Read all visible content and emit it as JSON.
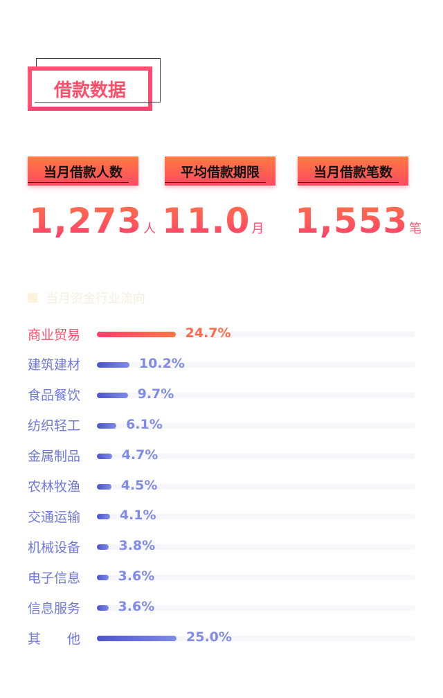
{
  "header": {
    "title": "借款数据"
  },
  "stats": [
    {
      "label": "当月借款人数",
      "value": "1,273",
      "unit": "人"
    },
    {
      "label": "平均借款期限",
      "value": "11.0",
      "unit": "月"
    },
    {
      "label": "当月借款笔数",
      "value": "1,553",
      "unit": "笔"
    }
  ],
  "section": {
    "title": "当月资金行业流向"
  },
  "industries": [
    {
      "name": "商业贸易",
      "percent": 24.7,
      "label": "24.7%"
    },
    {
      "name": "建筑建材",
      "percent": 10.2,
      "label": "10.2%"
    },
    {
      "name": "食品餐饮",
      "percent": 9.7,
      "label": "9.7%"
    },
    {
      "name": "纺织轻工",
      "percent": 6.1,
      "label": "6.1%"
    },
    {
      "name": "金属制品",
      "percent": 4.7,
      "label": "4.7%"
    },
    {
      "name": "农林牧渔",
      "percent": 4.5,
      "label": "4.5%"
    },
    {
      "name": "交通运输",
      "percent": 4.1,
      "label": "4.1%"
    },
    {
      "name": "机械设备",
      "percent": 3.8,
      "label": "3.8%"
    },
    {
      "name": "电子信息",
      "percent": 3.6,
      "label": "3.6%"
    },
    {
      "name": "信息服务",
      "percent": 3.6,
      "label": "3.6%"
    },
    {
      "name": "其　　他",
      "percent": 25.0,
      "label": "25.0%"
    }
  ],
  "colors": {
    "accent": "#ff4f6b",
    "accent_orange": "#ff7446",
    "bar_blue": "#6f78da",
    "track": "#f7f7fb"
  }
}
